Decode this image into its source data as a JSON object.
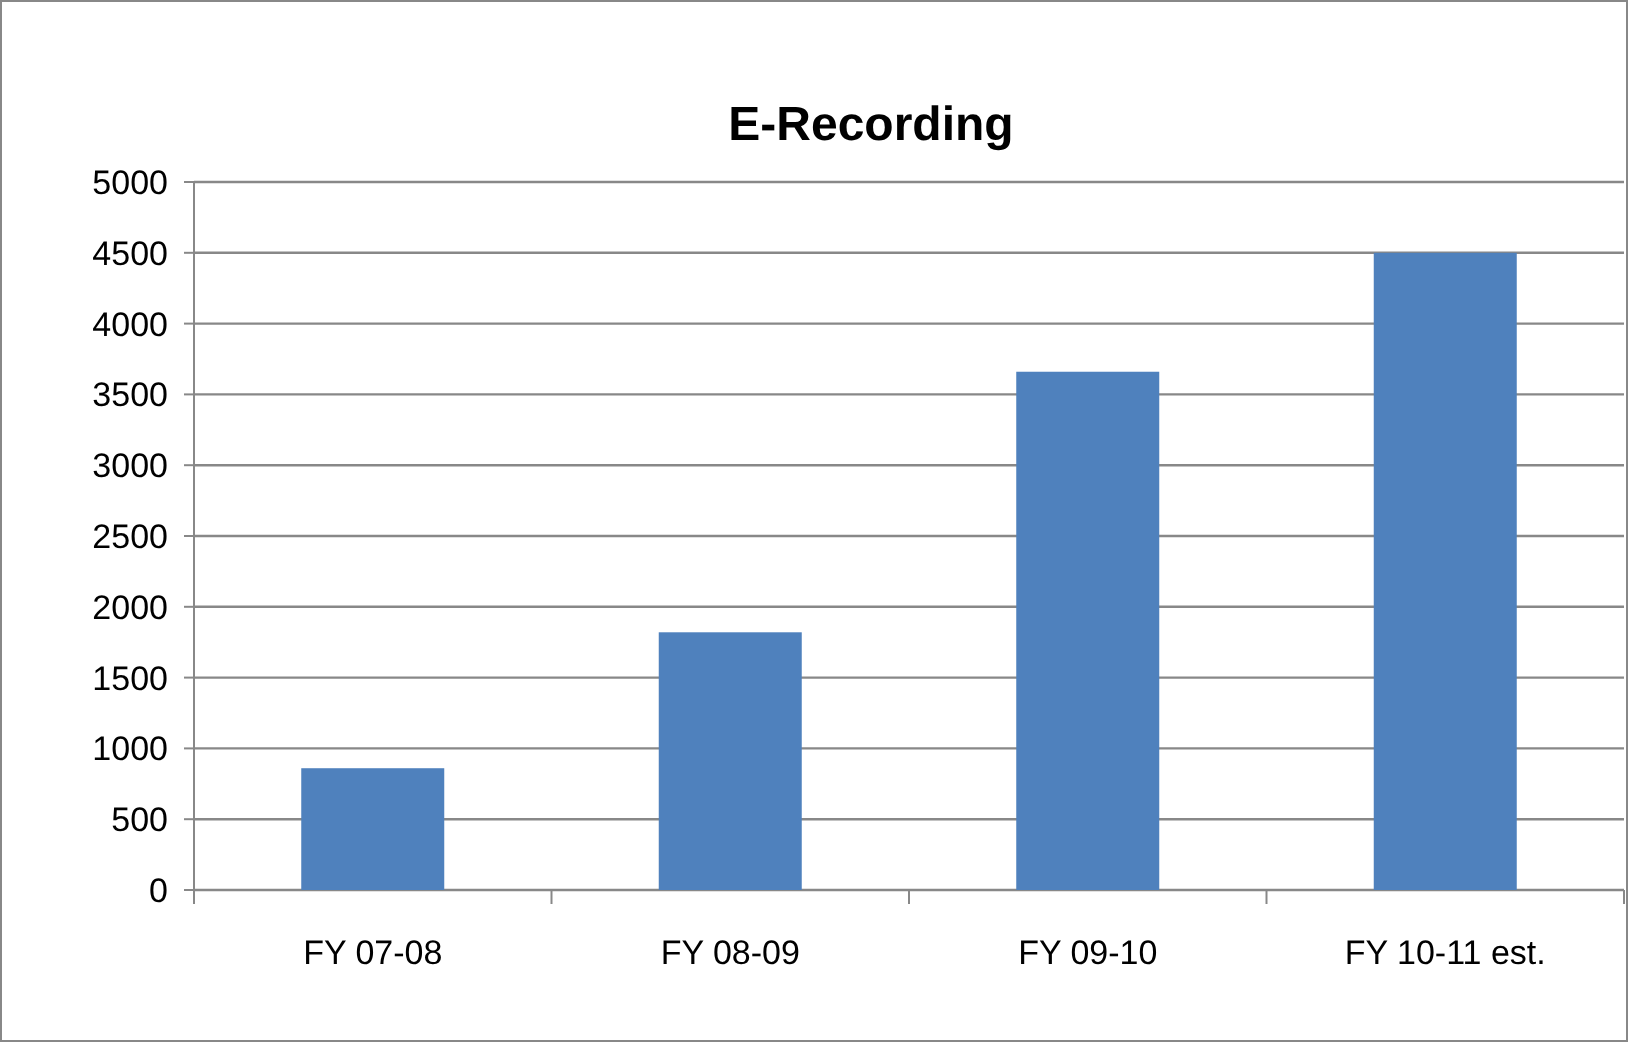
{
  "chart_data": {
    "type": "bar",
    "title": "E-Recording",
    "categories": [
      "FY 07-08",
      "FY 08-09",
      "FY 09-10",
      "FY 10-11 est."
    ],
    "values": [
      860,
      1820,
      3660,
      4500
    ],
    "color": "#4f81bd",
    "ylim": [
      0,
      5000
    ],
    "yticks": [
      0,
      500,
      1000,
      1500,
      2000,
      2500,
      3000,
      3500,
      4000,
      4500,
      5000
    ],
    "grid": "y"
  }
}
